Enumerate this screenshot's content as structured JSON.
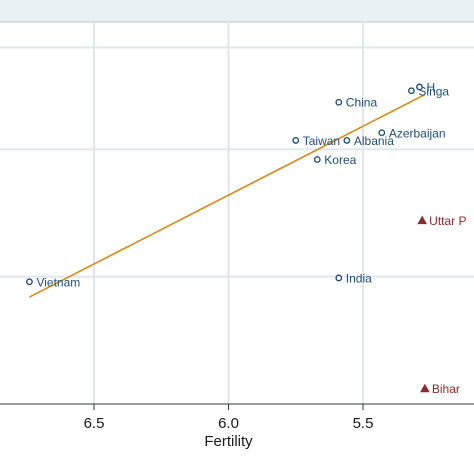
{
  "chart_data": {
    "type": "scatter",
    "title": "",
    "xlabel": "Fertility",
    "ylabel": "",
    "x_reversed": true,
    "xlim": [
      6.75,
      5.27
    ],
    "ylim": [
      0.0,
      1.0
    ],
    "x_ticks": [
      6.5,
      6.0,
      5.5
    ],
    "x_tick_labels": [
      "6.5",
      "6.0",
      "5.5"
    ],
    "y_gridlines": [
      0.3333,
      0.6667,
      0.9333
    ],
    "grid": true,
    "legend": "none",
    "colors": {
      "countries": "#1f4e79",
      "states": "#8b2a2a",
      "fit_line": "#d98a1a",
      "grid": "#dfe6ec",
      "top_band": "#eaf1f5"
    },
    "series": [
      {
        "marker": "hollow-circle",
        "points": [
          {
            "label": "Vietnam",
            "x": 6.74,
            "y": 0.32
          },
          {
            "label": "China",
            "x": 5.59,
            "y": 0.79
          },
          {
            "label": "Taiwan",
            "x": 5.75,
            "y": 0.69
          },
          {
            "label": "Albania",
            "x": 5.56,
            "y": 0.69
          },
          {
            "label": "Azerbaijan",
            "x": 5.43,
            "y": 0.71
          },
          {
            "label": "Korea",
            "x": 5.67,
            "y": 0.64
          },
          {
            "label": "India",
            "x": 5.59,
            "y": 0.33
          },
          {
            "label": "Singa",
            "x": 5.32,
            "y": 0.82
          },
          {
            "label": "H",
            "x": 5.29,
            "y": 0.83
          }
        ]
      },
      {
        "marker": "filled-triangle",
        "points": [
          {
            "label": "Uttar P",
            "x": 5.28,
            "y": 0.48
          },
          {
            "label": "Bihar",
            "x": 5.27,
            "y": 0.04
          }
        ]
      }
    ],
    "fit_line": {
      "x": [
        6.74,
        5.27
      ],
      "y": [
        0.28,
        0.81
      ]
    }
  }
}
